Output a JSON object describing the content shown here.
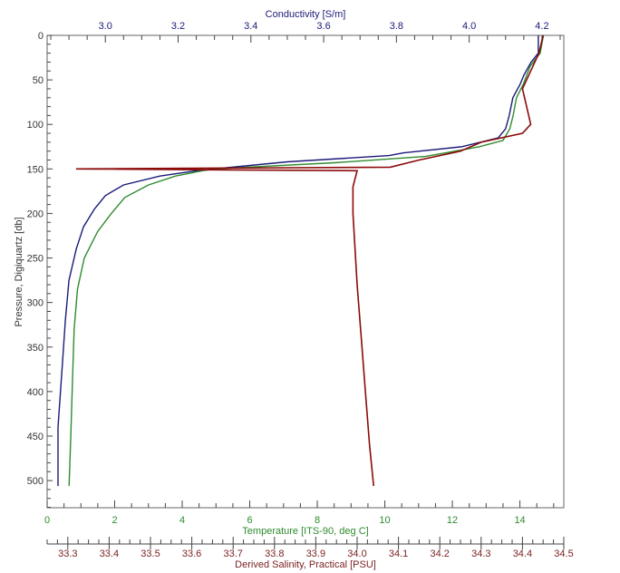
{
  "chart_data": {
    "type": "line",
    "title": "",
    "ylabel": "Pressure, Digiquartz [db]",
    "ylim": [
      0,
      530
    ],
    "y_inverted": true,
    "y_ticks": [
      0,
      50,
      100,
      150,
      200,
      250,
      300,
      350,
      400,
      450,
      500
    ],
    "x_axes": [
      {
        "name": "conductivity",
        "label": "Conductivity [S/m]",
        "position": "top",
        "color": "#1a1a7a",
        "range": [
          2.84,
          4.26
        ],
        "ticks": [
          "3.0",
          "3.2",
          "3.4",
          "3.6",
          "3.8",
          "4.0",
          "4.2"
        ]
      },
      {
        "name": "temperature",
        "label": "Temperature [ITS-90, deg C]",
        "position": "bottom",
        "color": "#2e8b2e",
        "range": [
          0,
          15.3
        ],
        "ticks": [
          "0",
          "2",
          "4",
          "6",
          "8",
          "10",
          "12",
          "14"
        ]
      },
      {
        "name": "salinity",
        "label": "Derived Salinity, Practical [PSU]",
        "position": "bottom-2",
        "color": "#7a1f1f",
        "range": [
          33.25,
          34.5
        ],
        "ticks": [
          "33.3",
          "33.4",
          "33.5",
          "33.6",
          "33.7",
          "33.8",
          "33.9",
          "34.0",
          "34.1",
          "34.2",
          "34.3",
          "34.4",
          "34.5"
        ]
      }
    ],
    "series": [
      {
        "name": "Conductivity",
        "color": "#1a1a7a",
        "axis": "conductivity",
        "points": [
          [
            4.19,
            0
          ],
          [
            4.19,
            20
          ],
          [
            4.17,
            30
          ],
          [
            4.15,
            45
          ],
          [
            4.14,
            55
          ],
          [
            4.12,
            70
          ],
          [
            4.11,
            90
          ],
          [
            4.1,
            105
          ],
          [
            4.08,
            115
          ],
          [
            3.98,
            125
          ],
          [
            3.82,
            132
          ],
          [
            3.78,
            135
          ],
          [
            3.5,
            142
          ],
          [
            3.3,
            150
          ],
          [
            3.25,
            152
          ],
          [
            3.15,
            158
          ],
          [
            3.05,
            168
          ],
          [
            3.0,
            180
          ],
          [
            2.97,
            195
          ],
          [
            2.94,
            215
          ],
          [
            2.92,
            240
          ],
          [
            2.9,
            275
          ],
          [
            2.89,
            320
          ],
          [
            2.88,
            380
          ],
          [
            2.87,
            440
          ],
          [
            2.87,
            506
          ]
        ]
      },
      {
        "name": "Temperature",
        "color": "#2e8b2e",
        "axis": "temperature",
        "points": [
          [
            14.7,
            0
          ],
          [
            14.6,
            20
          ],
          [
            14.3,
            35
          ],
          [
            14.1,
            55
          ],
          [
            13.9,
            70
          ],
          [
            13.8,
            90
          ],
          [
            13.7,
            105
          ],
          [
            13.5,
            118
          ],
          [
            12.8,
            125
          ],
          [
            11.8,
            132
          ],
          [
            11.2,
            136
          ],
          [
            8.5,
            143
          ],
          [
            5.0,
            150
          ],
          [
            4.6,
            152
          ],
          [
            3.8,
            158
          ],
          [
            3.0,
            168
          ],
          [
            2.3,
            182
          ],
          [
            1.9,
            200
          ],
          [
            1.5,
            220
          ],
          [
            1.1,
            250
          ],
          [
            0.9,
            285
          ],
          [
            0.8,
            330
          ],
          [
            0.75,
            390
          ],
          [
            0.7,
            450
          ],
          [
            0.65,
            506
          ]
        ]
      },
      {
        "name": "Salinity",
        "color": "#8b0a0a",
        "axis": "salinity",
        "points": [
          [
            34.45,
            0
          ],
          [
            34.44,
            20
          ],
          [
            34.42,
            40
          ],
          [
            34.4,
            60
          ],
          [
            34.41,
            80
          ],
          [
            34.42,
            100
          ],
          [
            34.4,
            110
          ],
          [
            34.3,
            120
          ],
          [
            34.25,
            130
          ],
          [
            34.15,
            140
          ],
          [
            34.08,
            148
          ],
          [
            33.32,
            150
          ],
          [
            34.0,
            152
          ],
          [
            33.99,
            170
          ],
          [
            33.99,
            200
          ],
          [
            33.995,
            240
          ],
          [
            34.0,
            280
          ],
          [
            34.01,
            340
          ],
          [
            34.02,
            400
          ],
          [
            34.03,
            460
          ],
          [
            34.04,
            506
          ]
        ]
      }
    ],
    "annotations": []
  }
}
